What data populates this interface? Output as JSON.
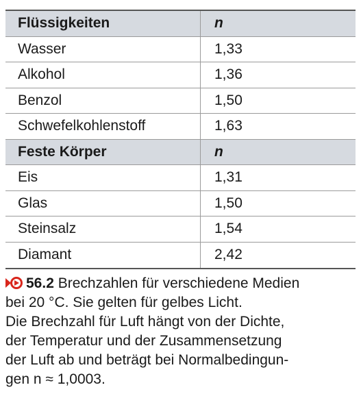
{
  "table": {
    "rows": [
      [
        "Flüssigkeiten",
        "n"
      ],
      [
        "Wasser",
        "1,33"
      ],
      [
        "Alkohol",
        "1,36"
      ],
      [
        "Benzol",
        "1,50"
      ],
      [
        "Schwefelkohlenstoff",
        "1,63"
      ],
      [
        "Feste Körper",
        "n"
      ],
      [
        "Eis",
        "1,31"
      ],
      [
        "Glas",
        "1,50"
      ],
      [
        "Steinsalz",
        "1,54"
      ],
      [
        "Diamant",
        "2,42"
      ]
    ]
  },
  "caption": {
    "number": "56.2",
    "lines": [
      "Brechzahlen für verschiedene Medien",
      "bei 20 °C. Sie gelten für gelbes Licht.",
      "Die Brechzahl für Luft hängt von der Dichte,",
      "der Temperatur und der Zusammensetzung",
      "der Luft ab und beträgt bei Normalbedingun-",
      "gen n ≈ 1,0003."
    ]
  }
}
